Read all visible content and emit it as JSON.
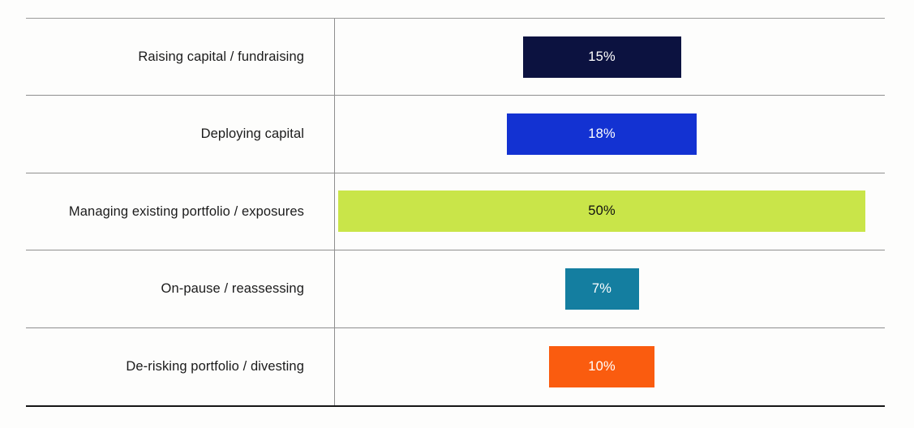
{
  "chart_data": {
    "type": "bar",
    "orientation": "horizontal",
    "title": "",
    "xlabel": "",
    "ylabel": "",
    "legend": "none",
    "grid": "horizontal row separators only",
    "axis_ticks": "none (values printed inside bars)",
    "categories": [
      "Raising capital / fundraising",
      "Deploying capital",
      "Managing existing portfolio / exposures",
      "On-pause / reassessing",
      "De-risking portfolio / divesting"
    ],
    "values": [
      15,
      18,
      50,
      7,
      10
    ],
    "value_labels": [
      "15%",
      "18%",
      "50%",
      "7%",
      "10%"
    ],
    "bar_colors": [
      "#0c1240",
      "#1332d2",
      "#c9e549",
      "#147ea0",
      "#fa5c0f"
    ],
    "value_text_colors": [
      "#ffffff",
      "#ffffff",
      "#101010",
      "#ffffff",
      "#ffffff"
    ],
    "bar_alignment": "centered horizontally in right panel"
  },
  "styles": {
    "background": "#fdfdfc",
    "label_text_color": "#1b1b1b",
    "separator_color": "#8f8f8f",
    "top_border_color": "#9a9a9a",
    "bottom_border_color": "#161616"
  }
}
